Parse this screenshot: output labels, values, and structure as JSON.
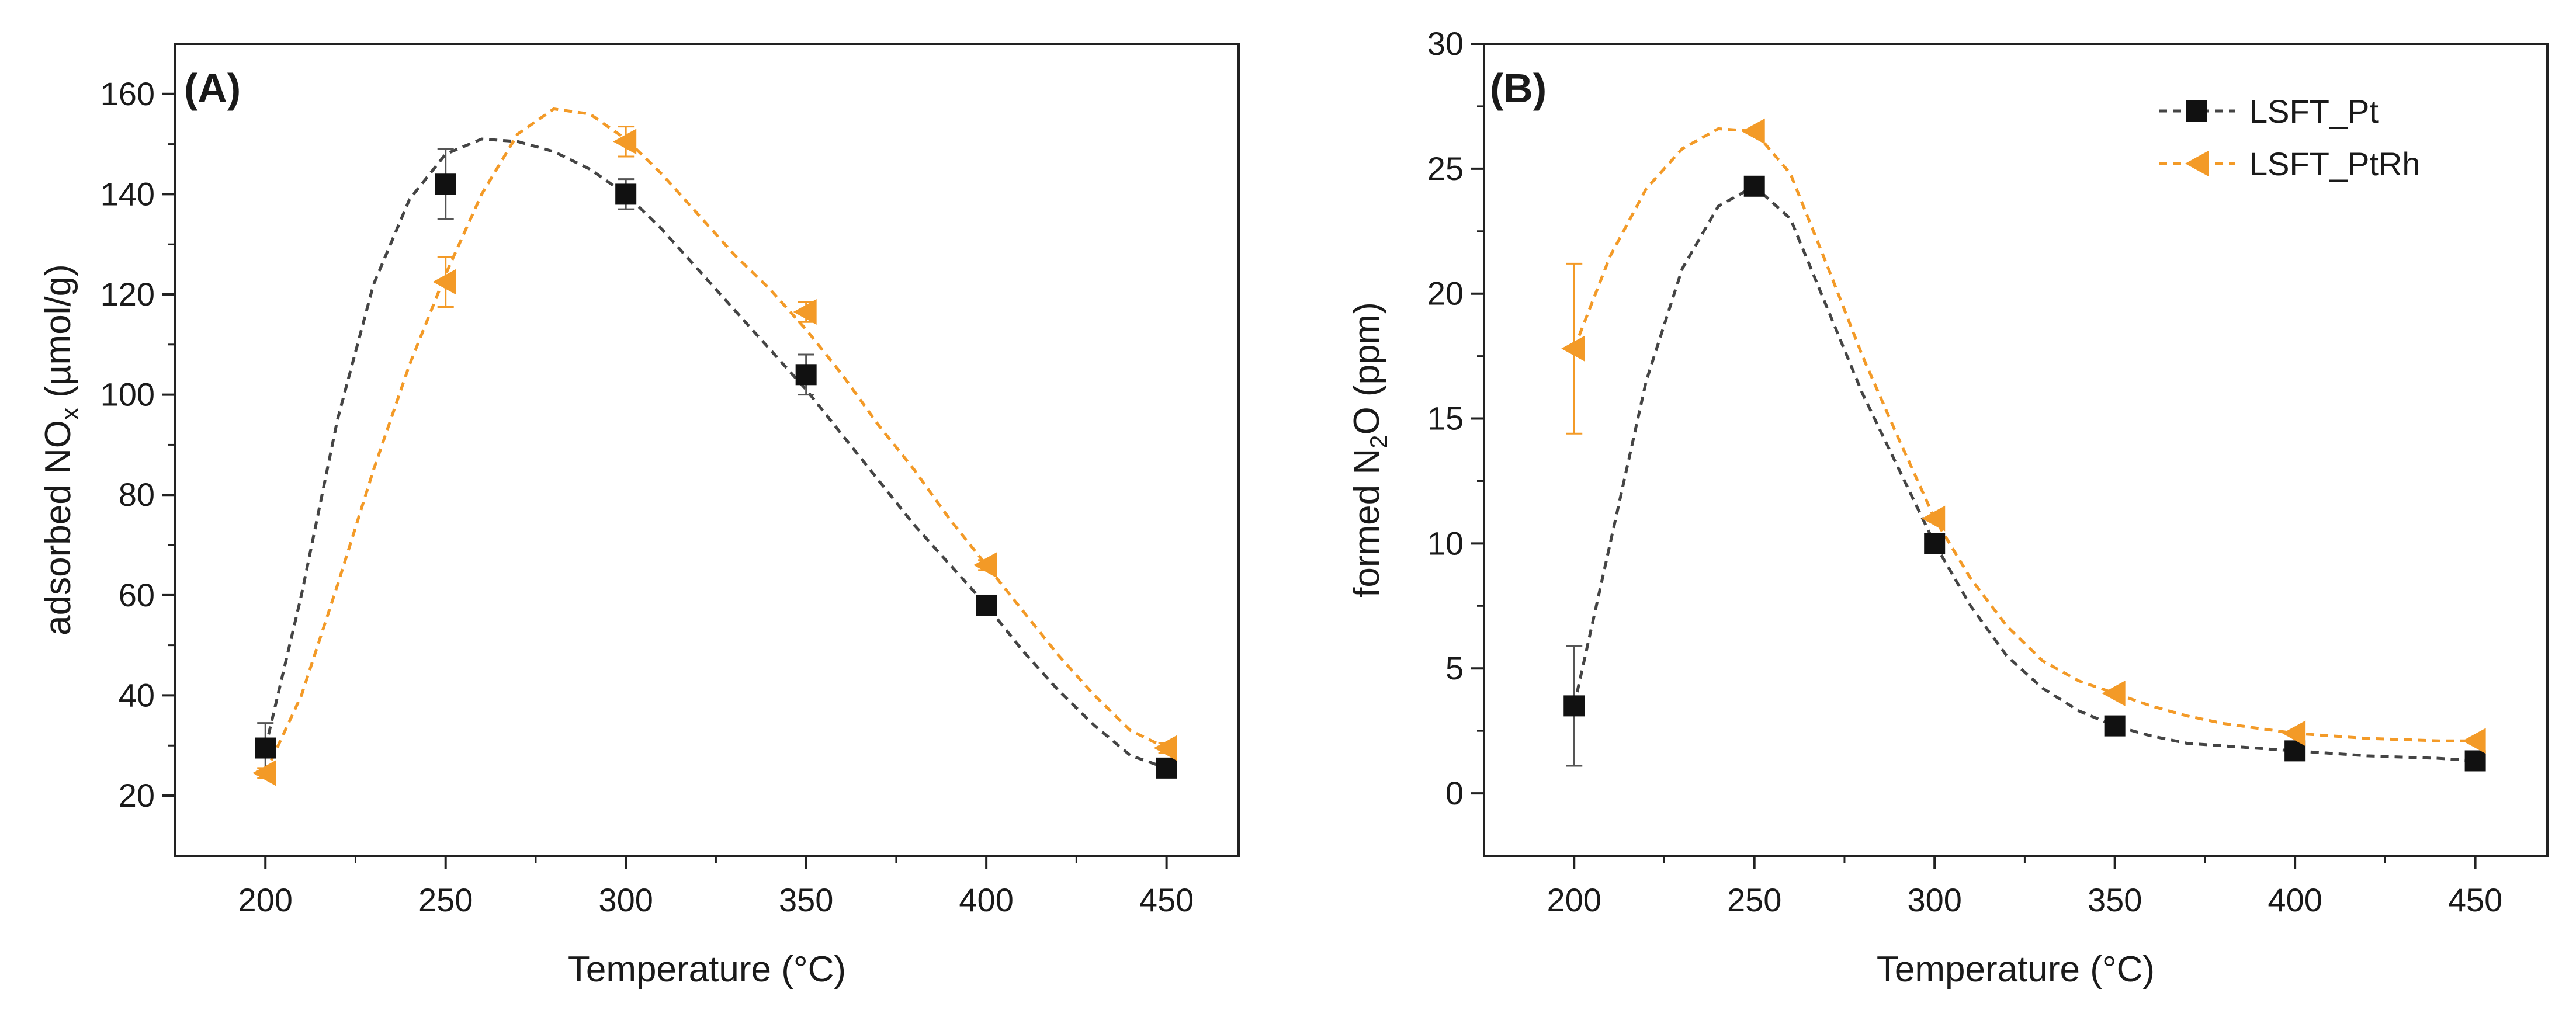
{
  "chart_data": [
    {
      "type": "line",
      "panel_label": "(A)",
      "xlabel": "Temperature (°C)",
      "ylabel": "adsorbed NO",
      "ylabel_sub": "x",
      "ylabel_suffix": " (µmol/g)",
      "xlim": [
        175,
        470
      ],
      "ylim": [
        8,
        170
      ],
      "xticks": [
        200,
        250,
        300,
        350,
        400,
        450
      ],
      "yticks": [
        20,
        40,
        60,
        80,
        100,
        120,
        140,
        160
      ],
      "series": [
        {
          "name": "LSFT_Pt",
          "color": "#111111",
          "line_color": "#444444",
          "marker": "square",
          "x": [
            200,
            250,
            300,
            350,
            400,
            450
          ],
          "y": [
            29.5,
            142,
            140,
            104,
            58,
            25.5
          ],
          "err": [
            5,
            7,
            3,
            4,
            1.5,
            1
          ],
          "fit": [
            [
              200,
              29.5
            ],
            [
              210,
              60
            ],
            [
              220,
              95
            ],
            [
              230,
              122
            ],
            [
              240,
              139
            ],
            [
              250,
              148
            ],
            [
              260,
              151
            ],
            [
              270,
              150.5
            ],
            [
              280,
              148.5
            ],
            [
              290,
              145
            ],
            [
              300,
              140
            ],
            [
              310,
              133
            ],
            [
              320,
              125
            ],
            [
              330,
              117
            ],
            [
              340,
              109
            ],
            [
              350,
              101
            ],
            [
              360,
              92
            ],
            [
              370,
              83
            ],
            [
              380,
              74
            ],
            [
              390,
              66
            ],
            [
              400,
              58
            ],
            [
              410,
              49
            ],
            [
              420,
              41
            ],
            [
              430,
              34
            ],
            [
              440,
              28
            ],
            [
              450,
              25.5
            ]
          ]
        },
        {
          "name": "LSFT_PtRh",
          "color": "#f39a27",
          "line_color": "#f39a27",
          "marker": "triangle-left",
          "x": [
            200,
            250,
            300,
            350,
            400,
            450
          ],
          "y": [
            24.5,
            122.5,
            150.5,
            116.5,
            66,
            29.5
          ],
          "err": [
            1,
            5,
            3,
            2,
            1,
            1
          ],
          "fit": [
            [
              200,
              24.5
            ],
            [
              210,
              40
            ],
            [
              220,
              62
            ],
            [
              230,
              85
            ],
            [
              240,
              106
            ],
            [
              250,
              124
            ],
            [
              260,
              140
            ],
            [
              270,
              152
            ],
            [
              280,
              157
            ],
            [
              290,
              156
            ],
            [
              300,
              151
            ],
            [
              310,
              144
            ],
            [
              320,
              136
            ],
            [
              330,
              128
            ],
            [
              340,
              121
            ],
            [
              350,
              113
            ],
            [
              360,
              104
            ],
            [
              370,
              94
            ],
            [
              380,
              85
            ],
            [
              390,
              75
            ],
            [
              400,
              66
            ],
            [
              410,
              57
            ],
            [
              420,
              48
            ],
            [
              430,
              40
            ],
            [
              440,
              33
            ],
            [
              450,
              29.5
            ]
          ]
        }
      ]
    },
    {
      "type": "line",
      "panel_label": "(B)",
      "xlabel": "Temperature (°C)",
      "ylabel": "formed N",
      "ylabel_sub": "2",
      "ylabel_suffix": "O (ppm)",
      "xlim": [
        175,
        470
      ],
      "ylim": [
        -2.5,
        30
      ],
      "xticks": [
        200,
        250,
        300,
        350,
        400,
        450
      ],
      "yticks": [
        0,
        5,
        10,
        15,
        20,
        25,
        30
      ],
      "legend": {
        "position": "top-right",
        "entries": [
          "LSFT_Pt",
          "LSFT_PtRh"
        ]
      },
      "series": [
        {
          "name": "LSFT_Pt",
          "color": "#111111",
          "line_color": "#444444",
          "marker": "square",
          "x": [
            200,
            250,
            300,
            350,
            400,
            450
          ],
          "y": [
            3.5,
            24.3,
            10,
            2.7,
            1.7,
            1.3
          ],
          "err": [
            2.4,
            0,
            0,
            0,
            0,
            0
          ],
          "fit": [
            [
              200,
              3.5
            ],
            [
              210,
              10
            ],
            [
              220,
              16.5
            ],
            [
              230,
              21
            ],
            [
              240,
              23.5
            ],
            [
              250,
              24.3
            ],
            [
              260,
              23
            ],
            [
              270,
              19.5
            ],
            [
              280,
              16
            ],
            [
              290,
              13
            ],
            [
              300,
              10
            ],
            [
              310,
              7.5
            ],
            [
              320,
              5.5
            ],
            [
              330,
              4.2
            ],
            [
              340,
              3.3
            ],
            [
              350,
              2.7
            ],
            [
              360,
              2.3
            ],
            [
              370,
              2.0
            ],
            [
              380,
              1.9
            ],
            [
              390,
              1.8
            ],
            [
              400,
              1.7
            ],
            [
              410,
              1.6
            ],
            [
              420,
              1.5
            ],
            [
              430,
              1.45
            ],
            [
              440,
              1.4
            ],
            [
              450,
              1.3
            ]
          ]
        },
        {
          "name": "LSFT_PtRh",
          "color": "#f39a27",
          "line_color": "#f39a27",
          "marker": "triangle-left",
          "x": [
            200,
            250,
            300,
            350,
            400,
            450
          ],
          "y": [
            17.8,
            26.5,
            11,
            4,
            2.4,
            2.1
          ],
          "err": [
            3.4,
            0,
            0,
            0,
            0,
            0
          ],
          "fit": [
            [
              200,
              17.8
            ],
            [
              210,
              21.5
            ],
            [
              220,
              24.2
            ],
            [
              230,
              25.8
            ],
            [
              240,
              26.6
            ],
            [
              250,
              26.5
            ],
            [
              260,
              24.8
            ],
            [
              270,
              21.2
            ],
            [
              280,
              17.5
            ],
            [
              290,
              14.2
            ],
            [
              300,
              11
            ],
            [
              310,
              8.6
            ],
            [
              320,
              6.7
            ],
            [
              330,
              5.3
            ],
            [
              340,
              4.5
            ],
            [
              350,
              4
            ],
            [
              360,
              3.5
            ],
            [
              370,
              3.1
            ],
            [
              380,
              2.8
            ],
            [
              390,
              2.6
            ],
            [
              400,
              2.4
            ],
            [
              410,
              2.3
            ],
            [
              420,
              2.2
            ],
            [
              430,
              2.15
            ],
            [
              440,
              2.1
            ],
            [
              450,
              2.1
            ]
          ]
        }
      ]
    }
  ]
}
